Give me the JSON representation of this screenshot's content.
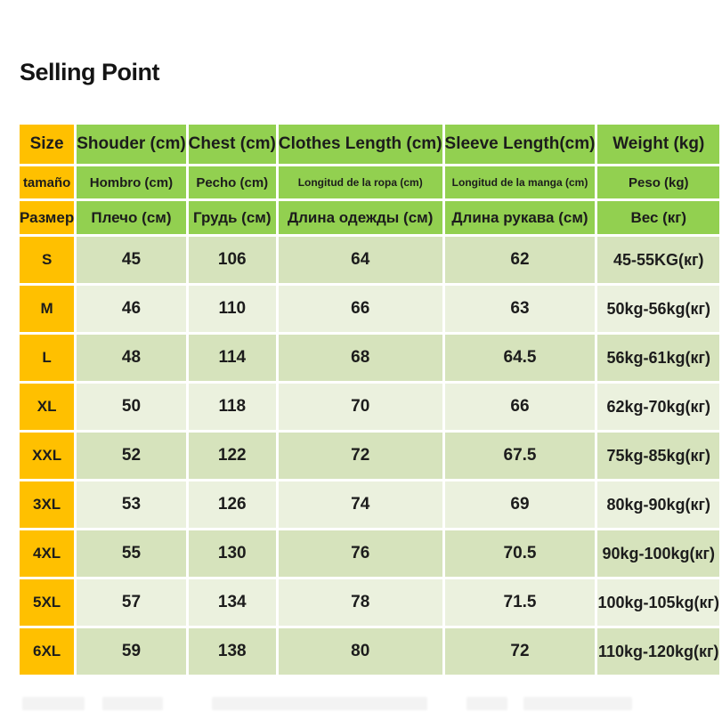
{
  "page": {
    "title": "Selling Point"
  },
  "size_chart": {
    "colors": {
      "size_column_bg": "#FFC000",
      "header_bg": "#92D050",
      "row_bg_odd": "#D6E3BC",
      "row_bg_even": "#EBF1DE",
      "gridline": "#FFFFFF",
      "text": "#1C1C1C"
    },
    "headers": {
      "en": {
        "size": "Size",
        "shoulder": "Shouder (cm)",
        "chest": "Chest (cm)",
        "clothes_length": "Clothes Length (cm)",
        "sleeve_length": "Sleeve Length(cm)",
        "weight": "Weight (kg)"
      },
      "es": {
        "size": "tamaño",
        "shoulder": "Hombro (cm)",
        "chest": "Pecho (cm)",
        "clothes_length": "Longitud de la ropa (cm)",
        "sleeve_length": "Longitud de la manga (cm)",
        "weight": "Peso (kg)"
      },
      "ru": {
        "size": "Размер",
        "shoulder": "Плечо (см)",
        "chest": "Грудь (см)",
        "clothes_length": "Длина одежды (см)",
        "sleeve_length": "Длина рукава (см)",
        "weight": "Вес (кг)"
      }
    },
    "rows": [
      {
        "size": "S",
        "shoulder": "45",
        "chest": "106",
        "clothes_length": "64",
        "sleeve_length": "62",
        "weight": "45-55KG(кг)"
      },
      {
        "size": "M",
        "shoulder": "46",
        "chest": "110",
        "clothes_length": "66",
        "sleeve_length": "63",
        "weight": "50kg-56kg(кг)"
      },
      {
        "size": "L",
        "shoulder": "48",
        "chest": "114",
        "clothes_length": "68",
        "sleeve_length": "64.5",
        "weight": "56kg-61kg(кг)"
      },
      {
        "size": "XL",
        "shoulder": "50",
        "chest": "118",
        "clothes_length": "70",
        "sleeve_length": "66",
        "weight": "62kg-70kg(кг)"
      },
      {
        "size": "XXL",
        "shoulder": "52",
        "chest": "122",
        "clothes_length": "72",
        "sleeve_length": "67.5",
        "weight": "75kg-85kg(кг)"
      },
      {
        "size": "3XL",
        "shoulder": "53",
        "chest": "126",
        "clothes_length": "74",
        "sleeve_length": "69",
        "weight": "80kg-90kg(кг)"
      },
      {
        "size": "4XL",
        "shoulder": "55",
        "chest": "130",
        "clothes_length": "76",
        "sleeve_length": "70.5",
        "weight": "90kg-100kg(кг)"
      },
      {
        "size": "5XL",
        "shoulder": "57",
        "chest": "134",
        "clothes_length": "78",
        "sleeve_length": "71.5",
        "weight": "100kg-105kg(кг)"
      },
      {
        "size": "6XL",
        "shoulder": "59",
        "chest": "138",
        "clothes_length": "80",
        "sleeve_length": "72",
        "weight": "110kg-120kg(кг)"
      }
    ]
  }
}
